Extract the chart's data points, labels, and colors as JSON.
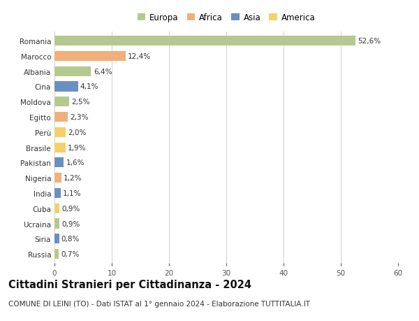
{
  "categories": [
    "Romania",
    "Marocco",
    "Albania",
    "Cina",
    "Moldova",
    "Egitto",
    "Perù",
    "Brasile",
    "Pakistan",
    "Nigeria",
    "India",
    "Cuba",
    "Ucraina",
    "Siria",
    "Russia"
  ],
  "values": [
    52.6,
    12.4,
    6.4,
    4.1,
    2.5,
    2.3,
    2.0,
    1.9,
    1.6,
    1.2,
    1.1,
    0.9,
    0.9,
    0.8,
    0.7
  ],
  "labels": [
    "52,6%",
    "12,4%",
    "6,4%",
    "4,1%",
    "2,5%",
    "2,3%",
    "2,0%",
    "1,9%",
    "1,6%",
    "1,2%",
    "1,1%",
    "0,9%",
    "0,9%",
    "0,8%",
    "0,7%"
  ],
  "colors": [
    "#b5c98e",
    "#f0b07a",
    "#b5c98e",
    "#6a8fc2",
    "#b5c98e",
    "#f0b07a",
    "#f5d06a",
    "#f5d06a",
    "#6a8fc2",
    "#f0b07a",
    "#6a8fc2",
    "#f5d06a",
    "#b5c98e",
    "#6a8fc2",
    "#b5c98e"
  ],
  "legend_labels": [
    "Europa",
    "Africa",
    "Asia",
    "America"
  ],
  "legend_colors": [
    "#b5c98e",
    "#f0b07a",
    "#6a8fc2",
    "#f5d06a"
  ],
  "xlim": [
    0,
    60
  ],
  "xticks": [
    0,
    10,
    20,
    30,
    40,
    50,
    60
  ],
  "title": "Cittadini Stranieri per Cittadinanza - 2024",
  "subtitle": "COMUNE DI LEINI (TO) - Dati ISTAT al 1° gennaio 2024 - Elaborazione TUTTITALIA.IT",
  "background_color": "#ffffff",
  "grid_color": "#d0d0d0",
  "bar_height": 0.65,
  "label_fontsize": 7.5,
  "title_fontsize": 10.5,
  "subtitle_fontsize": 7.5,
  "tick_fontsize": 7.5,
  "legend_fontsize": 8.5
}
